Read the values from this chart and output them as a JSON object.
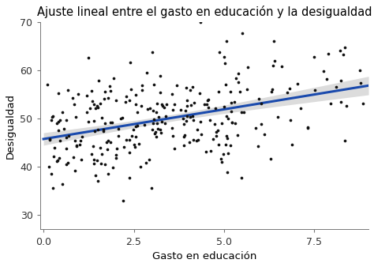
{
  "title": "Ajuste lineal entre el gasto en educación y la desigualdad",
  "xlabel": "Gasto en educación",
  "ylabel": "Desigualdad",
  "xlim": [
    -0.1,
    9.0
  ],
  "ylim": [
    27,
    70
  ],
  "xticks": [
    0.0,
    2.5,
    5.0,
    7.5
  ],
  "yticks": [
    30,
    40,
    50,
    60,
    70
  ],
  "scatter_color": "#111111",
  "line_color": "#1a4aad",
  "ci_color": "#c0c0c0",
  "ci_alpha": 0.55,
  "n_points": 280,
  "seed": 77,
  "background_color": "#ffffff",
  "title_fontsize": 10.5,
  "label_fontsize": 9.5,
  "tick_fontsize": 9,
  "marker_size": 7,
  "line_width": 2.2
}
